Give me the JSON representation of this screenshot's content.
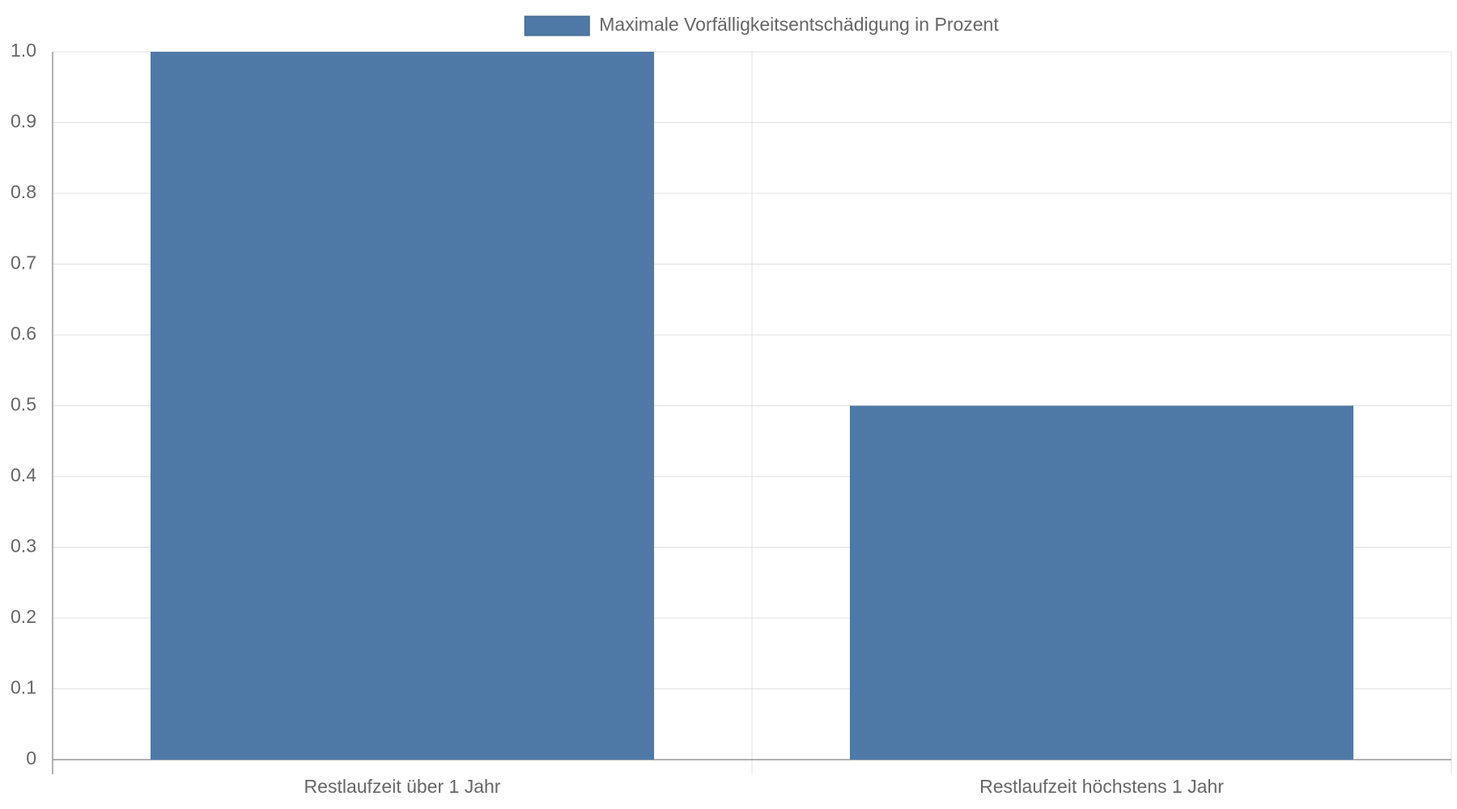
{
  "chart_data": {
    "type": "bar",
    "categories": [
      "Restlaufzeit über 1 Jahr",
      "Restlaufzeit höchstens 1 Jahr"
    ],
    "series": [
      {
        "name": "Maximale Vorfälligkeitsentschädigung in Prozent",
        "color": "#4e79a7",
        "values": [
          1,
          0.5
        ]
      }
    ],
    "ylim": [
      0,
      1
    ],
    "yticks": [
      0,
      0.1,
      0.2,
      0.3,
      0.4,
      0.5,
      0.6,
      0.7,
      0.8,
      0.9,
      {
        "value": 1,
        "label": "1.0"
      }
    ],
    "grid": true,
    "legend": "top"
  }
}
